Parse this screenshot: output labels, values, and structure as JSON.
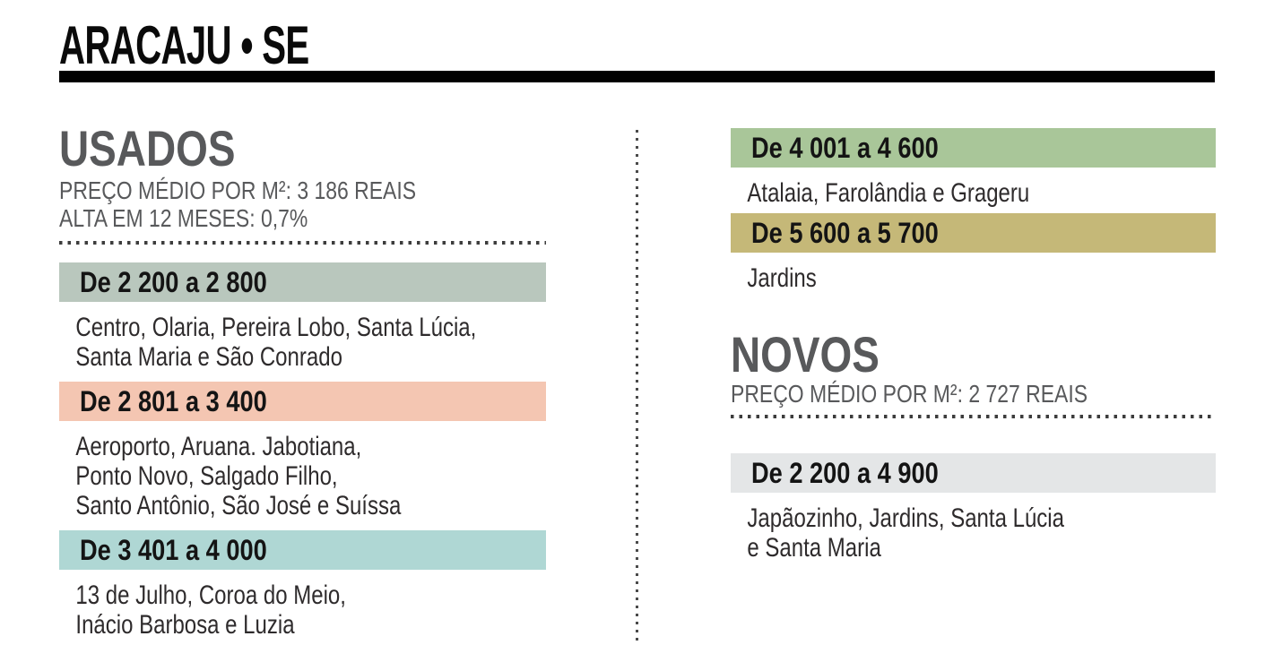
{
  "header": {
    "title": "ARACAJU • SE"
  },
  "usados": {
    "heading": "USADOS",
    "stat_price": "PREÇO MÉDIO POR M²: 3 186 REAIS",
    "stat_change": "ALTA EM 12 MESES: 0,7%",
    "ranges": [
      {
        "label": "De 2 200 a 2 800",
        "color": "#b9c7bd",
        "neighborhoods": "Centro, Olaria, Pereira Lobo, Santa Lúcia,\nSanta Maria e São Conrado"
      },
      {
        "label": "De 2 801 a 3 400",
        "color": "#f4c6b2",
        "neighborhoods": "Aeroporto, Aruana. Jabotiana,\nPonto Novo, Salgado Filho,\nSanto Antônio, São José e Suíssa"
      },
      {
        "label": "De 3 401 a 4 000",
        "color": "#afd7d4",
        "neighborhoods": "13 de Julho, Coroa do Meio,\nInácio Barbosa e Luzia"
      },
      {
        "label": "De 4 001 a 4 600",
        "color": "#a9c699",
        "neighborhoods": "Atalaia, Farolândia e Grageru"
      },
      {
        "label": "De 5 600 a 5 700",
        "color": "#c5b878",
        "neighborhoods": "Jardins"
      }
    ]
  },
  "novos": {
    "heading": "NOVOS",
    "stat_price": "PREÇO MÉDIO POR M²: 2 727 REAIS",
    "ranges": [
      {
        "label": "De 2 200 a 4 900",
        "color": "#e4e6e7",
        "neighborhoods": "Japãozinho, Jardins, Santa Lúcia\ne Santa Maria"
      }
    ]
  }
}
